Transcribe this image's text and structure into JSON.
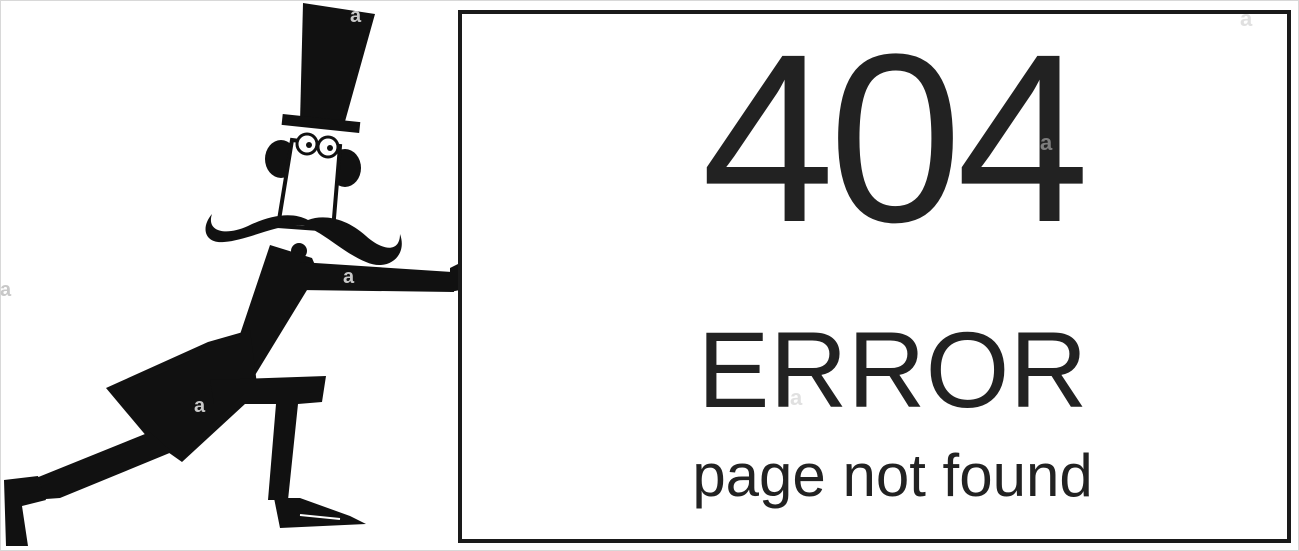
{
  "sign": {
    "code": "404",
    "title": "ERROR",
    "message": "page not found"
  },
  "colors": {
    "ink": "#1a1a1a",
    "text": "#222222",
    "background": "#ffffff"
  },
  "watermark_glyph": "a",
  "illustration": {
    "subject": "cartoon-gentleman-top-hat-mustache",
    "icon": "gentleman-pushing-sign-icon"
  }
}
